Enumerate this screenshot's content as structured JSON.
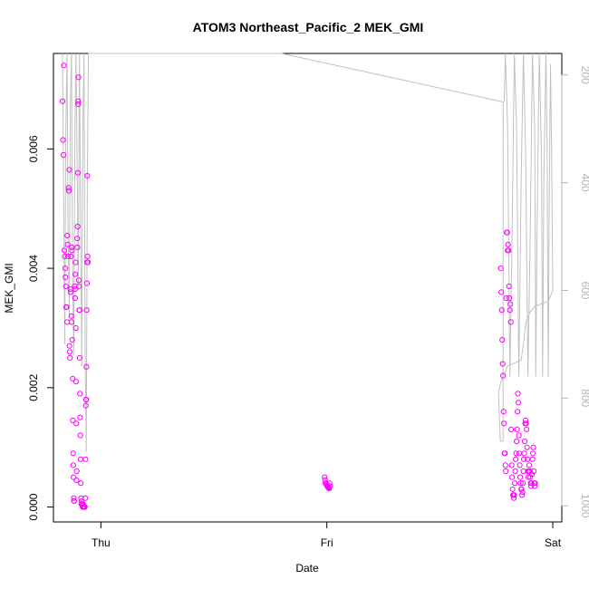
{
  "chart_data": {
    "type": "scatter",
    "title": "ATOM3 Northeast_Pacific_2 MEK_GMI",
    "xlabel": "Date",
    "ylabel": "MEK_GMI",
    "x_ticks": [
      "Thu",
      "Fri",
      "Sat"
    ],
    "x_tick_positions_days": [
      0,
      1,
      2
    ],
    "x_range_days": [
      -0.21,
      2.04
    ],
    "y_ticks": [
      "0.000",
      "0.002",
      "0.004",
      "0.006"
    ],
    "y_tick_values": [
      0,
      0.002,
      0.004,
      0.006
    ],
    "ylim": [
      -0.00025,
      0.0076
    ],
    "y2_ticks": [
      "200",
      "400",
      "600",
      "800",
      "1000"
    ],
    "y2_tick_values": [
      200,
      400,
      600,
      800,
      1000
    ],
    "y2lim": [
      1030,
      160
    ],
    "point_color": "#ff00ff",
    "line_color": "#c0c0c0",
    "grid": false,
    "series": [
      {
        "type": "scatter",
        "points": [
          [
            -0.17,
            0.0068
          ],
          [
            -0.168,
            0.00615
          ],
          [
            -0.166,
            0.0059
          ],
          [
            -0.164,
            0.0074
          ],
          [
            -0.162,
            0.0043
          ],
          [
            -0.16,
            0.0042
          ],
          [
            -0.158,
            0.004
          ],
          [
            -0.157,
            0.00385
          ],
          [
            -0.155,
            0.0037
          ],
          [
            -0.154,
            0.00335
          ],
          [
            -0.152,
            0.00335
          ],
          [
            -0.15,
            0.0031
          ],
          [
            -0.149,
            0.00455
          ],
          [
            -0.147,
            0.0044
          ],
          [
            -0.145,
            0.0042
          ],
          [
            -0.143,
            0.00535
          ],
          [
            -0.142,
            0.0053
          ],
          [
            -0.14,
            0.00565
          ],
          [
            -0.139,
            0.0027
          ],
          [
            -0.138,
            0.0026
          ],
          [
            -0.137,
            0.0025
          ],
          [
            -0.135,
            0.00365
          ],
          [
            -0.134,
            0.0036
          ],
          [
            -0.132,
            0.0042
          ],
          [
            -0.131,
            0.0032
          ],
          [
            -0.13,
            0.0031
          ],
          [
            -0.129,
            0.00435
          ],
          [
            -0.128,
            0.0043
          ],
          [
            -0.127,
            0.0028
          ],
          [
            -0.125,
            0.00215
          ],
          [
            -0.124,
            0.00145
          ],
          [
            -0.123,
            0.0009
          ],
          [
            -0.122,
            0.0007
          ],
          [
            -0.121,
            0.0005
          ],
          [
            -0.12,
            0.00015
          ],
          [
            -0.119,
            0.0001
          ],
          [
            -0.118,
            0.0001
          ],
          [
            -0.116,
            0.0037
          ],
          [
            -0.115,
            0.00365
          ],
          [
            -0.114,
            0.0035
          ],
          [
            -0.113,
            0.0039
          ],
          [
            -0.112,
            0.0041
          ],
          [
            -0.111,
            0.003
          ],
          [
            -0.11,
            0.0021
          ],
          [
            -0.109,
            0.0014
          ],
          [
            -0.108,
            0.00045
          ],
          [
            -0.107,
            0.0006
          ],
          [
            -0.105,
            0.0045
          ],
          [
            -0.104,
            0.00435
          ],
          [
            -0.103,
            0.0047
          ],
          [
            -0.102,
            0.0056
          ],
          [
            -0.101,
            0.00675
          ],
          [
            -0.1,
            0.0068
          ],
          [
            -0.099,
            0.0072
          ],
          [
            -0.098,
            0.0038
          ],
          [
            -0.097,
            0.0037
          ],
          [
            -0.096,
            0.0033
          ],
          [
            -0.095,
            0.0033
          ],
          [
            -0.094,
            0.0025
          ],
          [
            -0.093,
            0.0019
          ],
          [
            -0.092,
            0.0015
          ],
          [
            -0.091,
            0.0012
          ],
          [
            -0.09,
            0.0008
          ],
          [
            -0.089,
            0.0004
          ],
          [
            -0.088,
            0.00015
          ],
          [
            -0.087,
            5e-05
          ],
          [
            -0.085,
            0.0001
          ],
          [
            -0.083,
            5e-05
          ],
          [
            -0.081,
            0.0
          ],
          [
            -0.079,
            5e-05
          ],
          [
            -0.077,
            0.0
          ],
          [
            -0.075,
            0.0
          ],
          [
            -0.073,
            0.0
          ],
          [
            -0.071,
            0.0
          ],
          [
            -0.069,
            0.00015
          ],
          [
            -0.068,
            0.0008
          ],
          [
            -0.067,
            0.0017
          ],
          [
            -0.066,
            0.0018
          ],
          [
            -0.065,
            0.0018
          ],
          [
            -0.064,
            0.00235
          ],
          [
            -0.063,
            0.0033
          ],
          [
            -0.062,
            0.00375
          ],
          [
            -0.061,
            0.0041
          ],
          [
            -0.06,
            0.00555
          ],
          [
            -0.059,
            0.0042
          ],
          [
            -0.058,
            0.0041
          ],
          [
            0.99,
            0.0005
          ],
          [
            0.992,
            0.00045
          ],
          [
            0.994,
            0.0004
          ],
          [
            0.996,
            0.0004
          ],
          [
            0.998,
            0.00038
          ],
          [
            1.0,
            0.00036
          ],
          [
            1.002,
            0.00035
          ],
          [
            1.004,
            0.00034
          ],
          [
            1.006,
            0.00033
          ],
          [
            1.008,
            0.00032
          ],
          [
            1.01,
            0.00031
          ],
          [
            1.012,
            0.0004
          ],
          [
            1.014,
            0.00035
          ],
          [
            1.77,
            0.004
          ],
          [
            1.772,
            0.0036
          ],
          [
            1.774,
            0.0033
          ],
          [
            1.776,
            0.0028
          ],
          [
            1.778,
            0.0024
          ],
          [
            1.78,
            0.0022
          ],
          [
            1.782,
            0.0016
          ],
          [
            1.784,
            0.0014
          ],
          [
            1.786,
            0.0009
          ],
          [
            1.788,
            0.0009
          ],
          [
            1.79,
            0.0007
          ],
          [
            1.792,
            0.0006
          ],
          [
            1.794,
            0.0035
          ],
          [
            1.796,
            0.0046
          ],
          [
            1.798,
            0.0046
          ],
          [
            1.8,
            0.0043
          ],
          [
            1.802,
            0.0044
          ],
          [
            1.804,
            0.0043
          ],
          [
            1.806,
            0.0037
          ],
          [
            1.808,
            0.0035
          ],
          [
            1.81,
            0.0033
          ],
          [
            1.812,
            0.0034
          ],
          [
            1.814,
            0.0031
          ],
          [
            1.816,
            0.0013
          ],
          [
            1.818,
            0.0007
          ],
          [
            1.82,
            0.0005
          ],
          [
            1.822,
            0.0003
          ],
          [
            1.824,
            0.0002
          ],
          [
            1.826,
            0.0002
          ],
          [
            1.828,
            0.00015
          ],
          [
            1.83,
            0.0002
          ],
          [
            1.832,
            0.0004
          ],
          [
            1.834,
            0.0006
          ],
          [
            1.836,
            0.0008
          ],
          [
            1.838,
            0.0009
          ],
          [
            1.84,
            0.0011
          ],
          [
            1.842,
            0.0013
          ],
          [
            1.844,
            0.0016
          ],
          [
            1.846,
            0.0019
          ],
          [
            1.848,
            0.00175
          ],
          [
            1.85,
            0.0012
          ],
          [
            1.852,
            0.0009
          ],
          [
            1.854,
            0.0007
          ],
          [
            1.856,
            0.0005
          ],
          [
            1.858,
            0.0004
          ],
          [
            1.86,
            0.0003
          ],
          [
            1.862,
            0.0003
          ],
          [
            1.864,
            0.0002
          ],
          [
            1.866,
            0.00025
          ],
          [
            1.868,
            0.0004
          ],
          [
            1.87,
            0.0006
          ],
          [
            1.872,
            0.0008
          ],
          [
            1.874,
            0.0009
          ],
          [
            1.876,
            0.0011
          ],
          [
            1.878,
            0.0014
          ],
          [
            1.88,
            0.00145
          ],
          [
            1.882,
            0.0014
          ],
          [
            1.884,
            0.0013
          ],
          [
            1.886,
            0.001
          ],
          [
            1.888,
            0.0008
          ],
          [
            1.89,
            0.0006
          ],
          [
            1.892,
            0.0005
          ],
          [
            1.894,
            0.0006
          ],
          [
            1.896,
            0.0007
          ],
          [
            1.898,
            0.0006
          ],
          [
            1.9,
            0.0005
          ],
          [
            1.902,
            0.0004
          ],
          [
            1.904,
            0.00035
          ],
          [
            1.906,
            0.0004
          ],
          [
            1.908,
            0.00055
          ],
          [
            1.91,
            0.0008
          ],
          [
            1.912,
            0.0009
          ],
          [
            1.914,
            0.001
          ],
          [
            1.916,
            0.0006
          ],
          [
            1.918,
            0.0004
          ],
          [
            1.92,
            0.00035
          ],
          [
            1.922,
            0.0004
          ]
        ]
      },
      {
        "type": "line",
        "axis": "right",
        "name": "",
        "points": [
          [
            -0.17,
            160
          ],
          [
            -0.165,
            420
          ],
          [
            -0.16,
            700
          ],
          [
            -0.155,
            300
          ],
          [
            -0.15,
            160
          ],
          [
            -0.145,
            500
          ],
          [
            -0.14,
            650
          ],
          [
            -0.135,
            250
          ],
          [
            -0.13,
            160
          ],
          [
            -0.125,
            580
          ],
          [
            -0.12,
            720
          ],
          [
            -0.115,
            300
          ],
          [
            -0.11,
            160
          ],
          [
            -0.105,
            380
          ],
          [
            -0.1,
            600
          ],
          [
            -0.095,
            160
          ],
          [
            -0.09,
            450
          ],
          [
            -0.085,
            740
          ],
          [
            -0.08,
            300
          ],
          [
            -0.075,
            160
          ],
          [
            -0.07,
            700
          ],
          [
            -0.065,
            900
          ],
          [
            -0.06,
            400
          ],
          [
            -0.055,
            160
          ],
          [
            0.8,
            160
          ],
          [
            1.78,
            250
          ],
          [
            1.78,
            880
          ],
          [
            1.768,
            880
          ],
          [
            1.762,
            820
          ],
          [
            1.76,
            790
          ],
          [
            1.77,
            770
          ],
          [
            1.79,
            750
          ],
          [
            1.8,
            740
          ],
          [
            1.83,
            735
          ],
          [
            1.86,
            730
          ],
          [
            1.87,
            700
          ],
          [
            1.88,
            660
          ],
          [
            1.9,
            640
          ],
          [
            1.92,
            630
          ],
          [
            1.98,
            620
          ],
          [
            2.0,
            600
          ],
          [
            1.995,
            350
          ],
          [
            1.99,
            180
          ],
          [
            1.985,
            400
          ],
          [
            1.98,
            760
          ],
          [
            1.975,
            330
          ],
          [
            1.97,
            160
          ],
          [
            1.96,
            400
          ],
          [
            1.955,
            760
          ],
          [
            1.95,
            350
          ],
          [
            1.94,
            160
          ],
          [
            1.93,
            500
          ],
          [
            1.925,
            760
          ],
          [
            1.92,
            300
          ],
          [
            1.91,
            160
          ],
          [
            1.9,
            500
          ],
          [
            1.89,
            760
          ],
          [
            1.88,
            350
          ],
          [
            1.87,
            160
          ],
          [
            1.86,
            400
          ],
          [
            1.85,
            760
          ],
          [
            1.84,
            300
          ],
          [
            1.83,
            160
          ],
          [
            1.82,
            500
          ],
          [
            1.81,
            760
          ],
          [
            1.8,
            300
          ],
          [
            1.79,
            160
          ],
          [
            1.785,
            250
          ]
        ]
      }
    ]
  }
}
